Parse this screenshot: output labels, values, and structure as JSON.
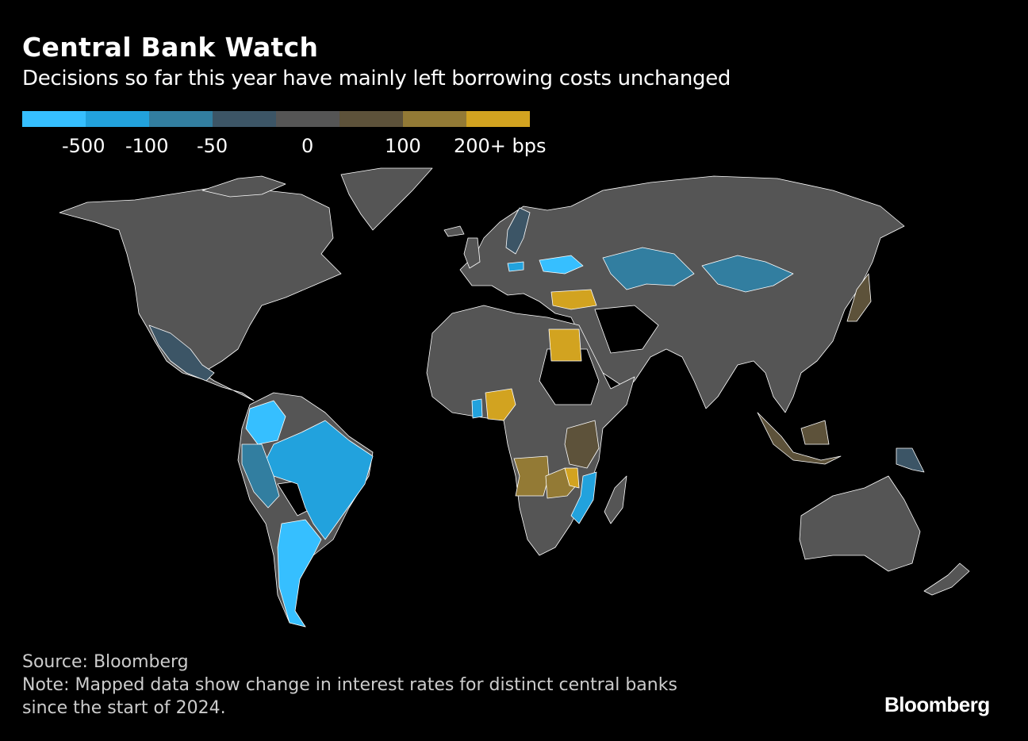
{
  "header": {
    "title": "Central Bank Watch",
    "subtitle": "Decisions so far this year have mainly left borrowing costs unchanged"
  },
  "legend": {
    "colors": [
      "#36bfff",
      "#22a2dd",
      "#327ea0",
      "#3c5566",
      "#555555",
      "#5d523a",
      "#937a35",
      "#d2a320"
    ],
    "labels": [
      "-500",
      "-100",
      "-50",
      "0",
      "100",
      "200+ bps"
    ]
  },
  "map": {
    "highlighted_regions": [
      {
        "name": "Argentina",
        "category": 0
      },
      {
        "name": "Colombia",
        "category": 0
      },
      {
        "name": "Ukraine",
        "category": 0
      },
      {
        "name": "Ghana",
        "category": 1
      },
      {
        "name": "Brazil",
        "category": 1
      },
      {
        "name": "Mozambique",
        "category": 1
      },
      {
        "name": "Czechia",
        "category": 1
      },
      {
        "name": "Peru",
        "category": 2
      },
      {
        "name": "Kazakhstan",
        "category": 2
      },
      {
        "name": "Mongolia",
        "category": 2
      },
      {
        "name": "Mexico",
        "category": 3
      },
      {
        "name": "Sweden",
        "category": 3
      },
      {
        "name": "Papua New Guinea",
        "category": 3
      },
      {
        "name": "Indonesia",
        "category": 5
      },
      {
        "name": "Japan",
        "category": 5
      },
      {
        "name": "Tanzania",
        "category": 5
      },
      {
        "name": "Angola",
        "category": 6
      },
      {
        "name": "Zambia",
        "category": 6
      },
      {
        "name": "Nigeria",
        "category": 7
      },
      {
        "name": "Egypt",
        "category": 7
      },
      {
        "name": "Turkey",
        "category": 7
      },
      {
        "name": "Malawi",
        "category": 7
      }
    ]
  },
  "footer": {
    "source": "Source: Bloomberg",
    "note_line1": "Note: Mapped data show change in interest rates for distinct central banks",
    "note_line2": "since the start of 2024.",
    "logo": "Bloomberg"
  }
}
